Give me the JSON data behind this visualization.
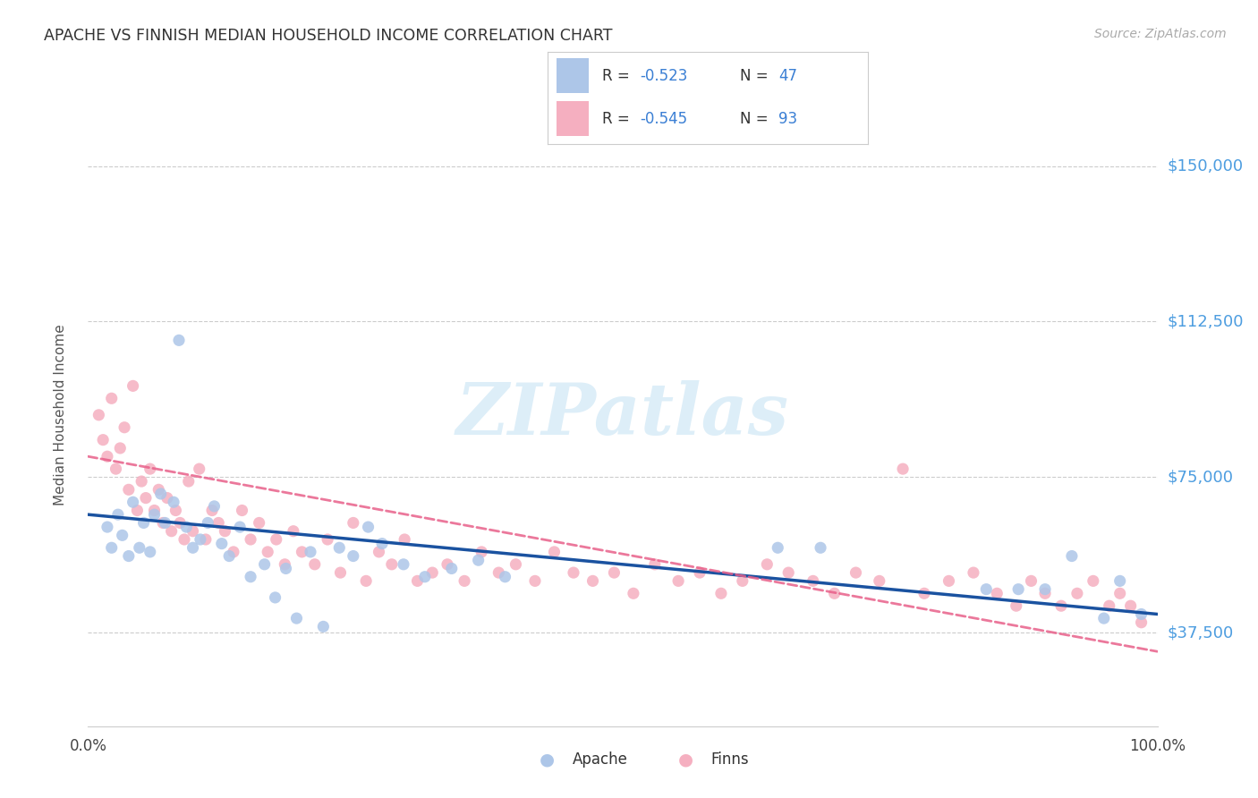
{
  "title": "APACHE VS FINNISH MEDIAN HOUSEHOLD INCOME CORRELATION CHART",
  "source": "Source: ZipAtlas.com",
  "ylabel": "Median Household Income",
  "xlim": [
    0.0,
    1.0
  ],
  "ylim": [
    15000,
    165000
  ],
  "yticks": [
    37500,
    75000,
    112500,
    150000
  ],
  "ytick_labels": [
    "$37,500",
    "$75,000",
    "$112,500",
    "$150,000"
  ],
  "xticks": [
    0.0,
    0.2,
    0.4,
    0.6,
    0.8,
    1.0
  ],
  "xtick_labels": [
    "0.0%",
    "",
    "",
    "",
    "",
    "100.0%"
  ],
  "apache_color": "#adc6e8",
  "finns_color": "#f5afc0",
  "apache_line_color": "#1a52a0",
  "finns_line_color": "#e8608a",
  "legend_R_color": "#3a7fd4",
  "legend_N_color": "#3a7fd4",
  "text_color": "#222222",
  "axis_label_color": "#4d9de0",
  "watermark_color": "#ddeef8",
  "watermark": "ZIPatlas",
  "apache_x": [
    0.018,
    0.022,
    0.028,
    0.032,
    0.038,
    0.042,
    0.048,
    0.052,
    0.058,
    0.062,
    0.068,
    0.072,
    0.08,
    0.085,
    0.092,
    0.098,
    0.105,
    0.112,
    0.118,
    0.125,
    0.132,
    0.142,
    0.152,
    0.165,
    0.175,
    0.185,
    0.195,
    0.208,
    0.22,
    0.235,
    0.248,
    0.262,
    0.275,
    0.295,
    0.315,
    0.34,
    0.365,
    0.39,
    0.645,
    0.685,
    0.84,
    0.87,
    0.895,
    0.92,
    0.95,
    0.965,
    0.985
  ],
  "apache_y": [
    63000,
    58000,
    66000,
    61000,
    56000,
    69000,
    58000,
    64000,
    57000,
    66000,
    71000,
    64000,
    69000,
    108000,
    63000,
    58000,
    60000,
    64000,
    68000,
    59000,
    56000,
    63000,
    51000,
    54000,
    46000,
    53000,
    41000,
    57000,
    39000,
    58000,
    56000,
    63000,
    59000,
    54000,
    51000,
    53000,
    55000,
    51000,
    58000,
    58000,
    48000,
    48000,
    48000,
    56000,
    41000,
    50000,
    42000
  ],
  "finns_x": [
    0.01,
    0.014,
    0.018,
    0.022,
    0.026,
    0.03,
    0.034,
    0.038,
    0.042,
    0.046,
    0.05,
    0.054,
    0.058,
    0.062,
    0.066,
    0.07,
    0.074,
    0.078,
    0.082,
    0.086,
    0.09,
    0.094,
    0.098,
    0.104,
    0.11,
    0.116,
    0.122,
    0.128,
    0.136,
    0.144,
    0.152,
    0.16,
    0.168,
    0.176,
    0.184,
    0.192,
    0.2,
    0.212,
    0.224,
    0.236,
    0.248,
    0.26,
    0.272,
    0.284,
    0.296,
    0.308,
    0.322,
    0.336,
    0.352,
    0.368,
    0.384,
    0.4,
    0.418,
    0.436,
    0.454,
    0.472,
    0.492,
    0.51,
    0.53,
    0.552,
    0.572,
    0.592,
    0.612,
    0.635,
    0.655,
    0.678,
    0.698,
    0.718,
    0.74,
    0.762,
    0.782,
    0.805,
    0.828,
    0.85,
    0.868,
    0.882,
    0.895,
    0.91,
    0.925,
    0.94,
    0.955,
    0.965,
    0.975,
    0.985
  ],
  "finns_y": [
    90000,
    84000,
    80000,
    94000,
    77000,
    82000,
    87000,
    72000,
    97000,
    67000,
    74000,
    70000,
    77000,
    67000,
    72000,
    64000,
    70000,
    62000,
    67000,
    64000,
    60000,
    74000,
    62000,
    77000,
    60000,
    67000,
    64000,
    62000,
    57000,
    67000,
    60000,
    64000,
    57000,
    60000,
    54000,
    62000,
    57000,
    54000,
    60000,
    52000,
    64000,
    50000,
    57000,
    54000,
    60000,
    50000,
    52000,
    54000,
    50000,
    57000,
    52000,
    54000,
    50000,
    57000,
    52000,
    50000,
    52000,
    47000,
    54000,
    50000,
    52000,
    47000,
    50000,
    54000,
    52000,
    50000,
    47000,
    52000,
    50000,
    77000,
    47000,
    50000,
    52000,
    47000,
    44000,
    50000,
    47000,
    44000,
    47000,
    50000,
    44000,
    47000,
    44000,
    40000
  ],
  "apache_trend_x": [
    0.0,
    1.0
  ],
  "apache_trend_y": [
    66000,
    42000
  ],
  "finns_trend_x": [
    0.0,
    1.0
  ],
  "finns_trend_y": [
    80000,
    33000
  ]
}
